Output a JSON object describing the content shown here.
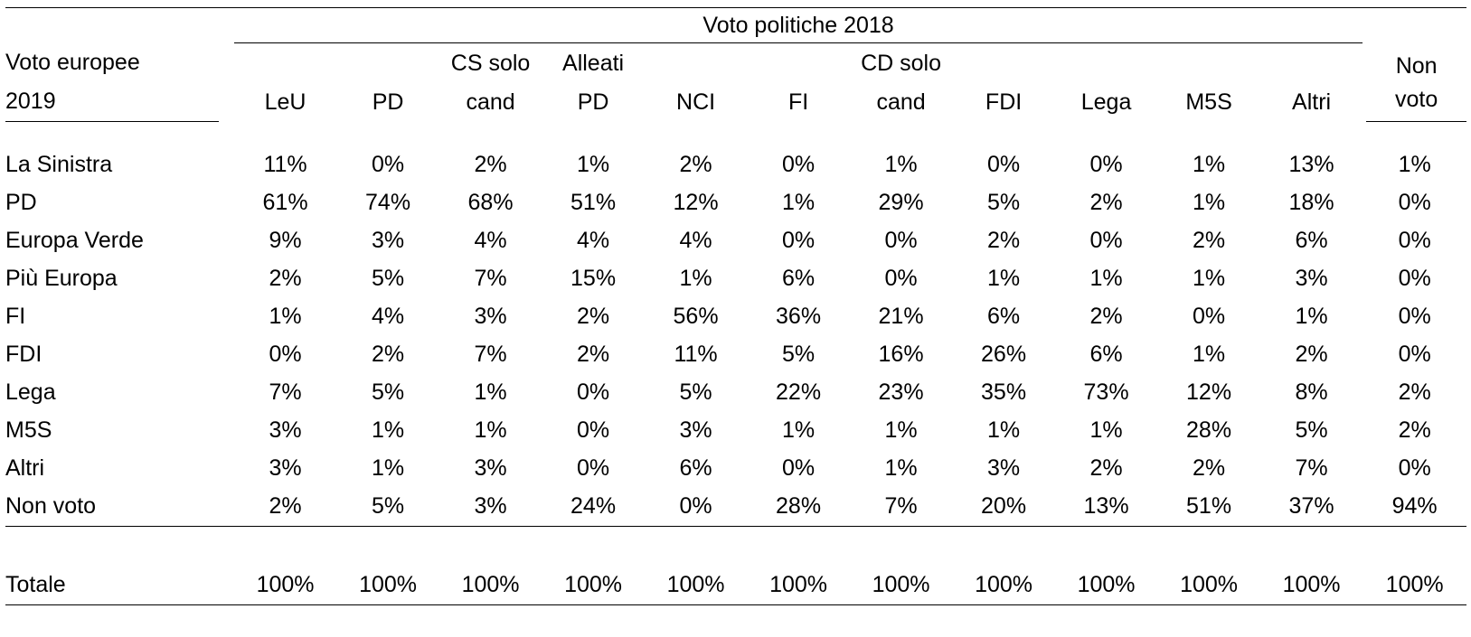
{
  "table": {
    "group_header": "Voto politiche 2018",
    "row_header_lines": [
      "Voto europee",
      "2019"
    ],
    "columns": [
      {
        "lines": [
          "",
          "LeU"
        ]
      },
      {
        "lines": [
          "",
          "PD"
        ]
      },
      {
        "lines": [
          "CS solo",
          "cand"
        ]
      },
      {
        "lines": [
          "Alleati",
          "PD"
        ]
      },
      {
        "lines": [
          "",
          "NCI"
        ]
      },
      {
        "lines": [
          "",
          "FI"
        ]
      },
      {
        "lines": [
          "CD solo",
          "cand"
        ]
      },
      {
        "lines": [
          "",
          "FDI"
        ]
      },
      {
        "lines": [
          "",
          "Lega"
        ]
      },
      {
        "lines": [
          "",
          "M5S"
        ]
      },
      {
        "lines": [
          "",
          "Altri"
        ]
      }
    ],
    "last_column_lines": [
      "Non",
      "voto"
    ],
    "rows": [
      {
        "label": "La Sinistra",
        "values": [
          "11%",
          "0%",
          "2%",
          "1%",
          "2%",
          "0%",
          "1%",
          "0%",
          "0%",
          "1%",
          "13%",
          "1%"
        ]
      },
      {
        "label": "PD",
        "values": [
          "61%",
          "74%",
          "68%",
          "51%",
          "12%",
          "1%",
          "29%",
          "5%",
          "2%",
          "1%",
          "18%",
          "0%"
        ]
      },
      {
        "label": "Europa Verde",
        "values": [
          "9%",
          "3%",
          "4%",
          "4%",
          "4%",
          "0%",
          "0%",
          "2%",
          "0%",
          "2%",
          "6%",
          "0%"
        ]
      },
      {
        "label": "Più Europa",
        "values": [
          "2%",
          "5%",
          "7%",
          "15%",
          "1%",
          "6%",
          "0%",
          "1%",
          "1%",
          "1%",
          "3%",
          "0%"
        ]
      },
      {
        "label": "FI",
        "values": [
          "1%",
          "4%",
          "3%",
          "2%",
          "56%",
          "36%",
          "21%",
          "6%",
          "2%",
          "0%",
          "1%",
          "0%"
        ]
      },
      {
        "label": "FDI",
        "values": [
          "0%",
          "2%",
          "7%",
          "2%",
          "11%",
          "5%",
          "16%",
          "26%",
          "6%",
          "1%",
          "2%",
          "0%"
        ]
      },
      {
        "label": "Lega",
        "values": [
          "7%",
          "5%",
          "1%",
          "0%",
          "5%",
          "22%",
          "23%",
          "35%",
          "73%",
          "12%",
          "8%",
          "2%"
        ]
      },
      {
        "label": "M5S",
        "values": [
          "3%",
          "1%",
          "1%",
          "0%",
          "3%",
          "1%",
          "1%",
          "1%",
          "1%",
          "28%",
          "5%",
          "2%"
        ]
      },
      {
        "label": "Altri",
        "values": [
          "3%",
          "1%",
          "3%",
          "0%",
          "6%",
          "0%",
          "1%",
          "3%",
          "2%",
          "2%",
          "7%",
          "0%"
        ]
      },
      {
        "label": "Non voto",
        "values": [
          "2%",
          "5%",
          "3%",
          "24%",
          "0%",
          "28%",
          "7%",
          "20%",
          "13%",
          "51%",
          "37%",
          "94%"
        ]
      }
    ],
    "total": {
      "label": "Totale",
      "values": [
        "100%",
        "100%",
        "100%",
        "100%",
        "100%",
        "100%",
        "100%",
        "100%",
        "100%",
        "100%",
        "100%",
        "100%"
      ]
    }
  }
}
